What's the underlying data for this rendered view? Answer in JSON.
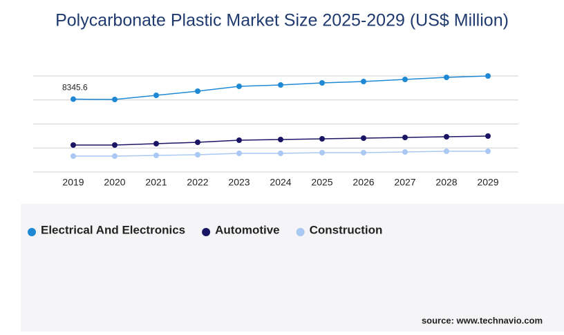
{
  "chart_data": {
    "type": "line",
    "title": "Polycarbonate Plastic Market Size 2025-2029 (US$ Million)",
    "categories": [
      "2019",
      "2020",
      "2021",
      "2022",
      "2023",
      "2024",
      "2025",
      "2026",
      "2027",
      "2028",
      "2029"
    ],
    "series": [
      {
        "name": "Electrical And Electronics",
        "color": "#1e88d4",
        "values": [
          8345.6,
          8309,
          8784,
          9259,
          9813,
          9971,
          10209,
          10367,
          10604,
          10842,
          11000
        ],
        "value_labels": [
          "8345.6",
          null,
          null,
          null,
          null,
          null,
          null,
          null,
          null,
          null,
          null
        ]
      },
      {
        "name": "Automotive",
        "color": "#1a1464",
        "values": [
          3086,
          3086,
          3245,
          3403,
          3640,
          3719,
          3799,
          3878,
          3957,
          4036,
          4115
        ]
      },
      {
        "name": "Construction",
        "color": "#a9c8f3",
        "values": [
          1820,
          1820,
          1899,
          1978,
          2137,
          2137,
          2216,
          2216,
          2295,
          2374,
          2374
        ]
      }
    ],
    "ylim": [
      0,
      11000
    ],
    "yticks": [
      0,
      2750,
      5500,
      8250,
      11000
    ],
    "grid": true,
    "source": "source: www.technavio.com"
  }
}
